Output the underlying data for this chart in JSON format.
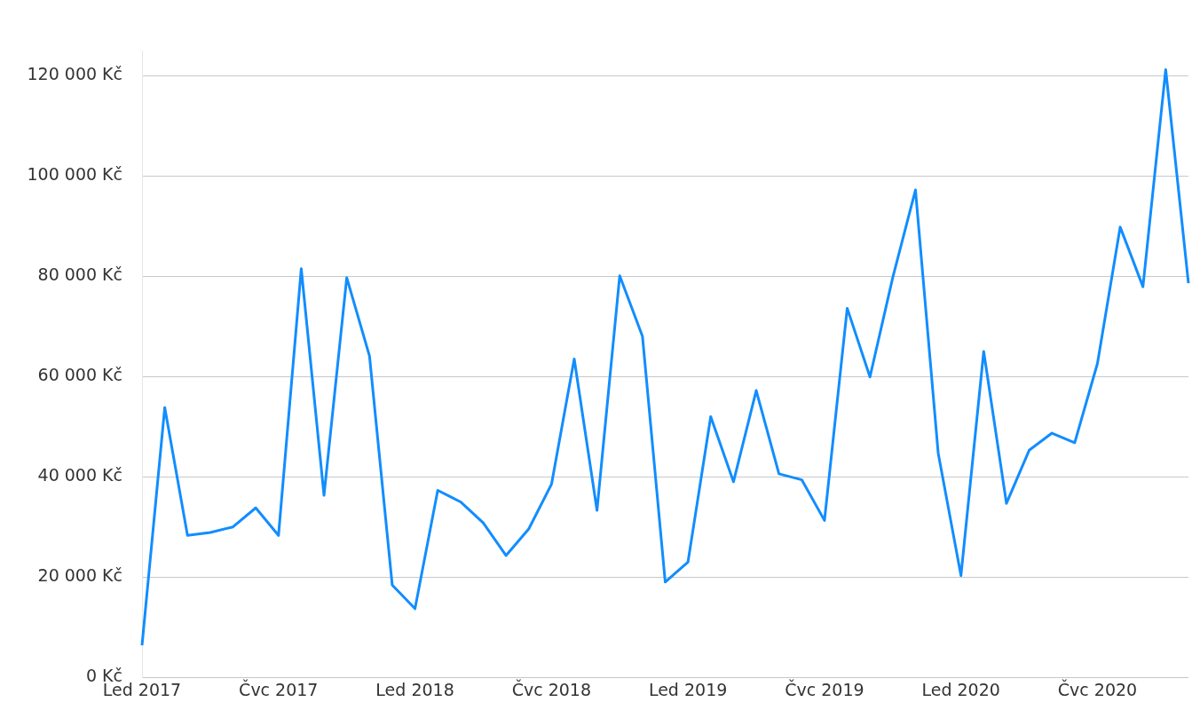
{
  "chart_data": {
    "type": "line",
    "categories": [
      "Led 2017",
      null,
      null,
      null,
      null,
      null,
      "Čvc 2017",
      null,
      null,
      null,
      null,
      null,
      "Led 2018",
      null,
      null,
      null,
      null,
      null,
      "Čvc 2018",
      null,
      null,
      null,
      null,
      null,
      "Led 2019",
      null,
      null,
      null,
      null,
      null,
      "Čvc 2019",
      null,
      null,
      null,
      null,
      null,
      "Led 2020",
      null,
      null,
      null,
      null,
      null,
      "Čvc 2020",
      null,
      null,
      null,
      null
    ],
    "series": [
      {
        "color": "#118dff",
        "values": [
          6400,
          53800,
          28300,
          28900,
          30000,
          33800,
          28300,
          81500,
          36300,
          79700,
          64100,
          18400,
          13700,
          37300,
          35000,
          30800,
          24300,
          29600,
          38500,
          63500,
          33300,
          80100,
          68000,
          19000,
          23000,
          52000,
          39000,
          57200,
          40600,
          39400,
          31300,
          73600,
          59900,
          79700,
          97200,
          44700,
          20300,
          65000,
          34700,
          45300,
          48700,
          46800,
          62600,
          89800,
          77900,
          121200,
          78600
        ]
      }
    ],
    "ylim": [
      0,
      125000
    ],
    "yticks": [
      {
        "value": 0,
        "label": "0 Kč"
      },
      {
        "value": 20000,
        "label": "20 000 Kč"
      },
      {
        "value": 40000,
        "label": "40 000 Kč"
      },
      {
        "value": 60000,
        "label": "60 000 Kč"
      },
      {
        "value": 80000,
        "label": "80 000 Kč"
      },
      {
        "value": 100000,
        "label": "100 000 Kč"
      },
      {
        "value": 120000,
        "label": "120 000 Kč"
      }
    ],
    "grid": "y",
    "legend": false,
    "marker": "none",
    "line_style": "solid"
  }
}
